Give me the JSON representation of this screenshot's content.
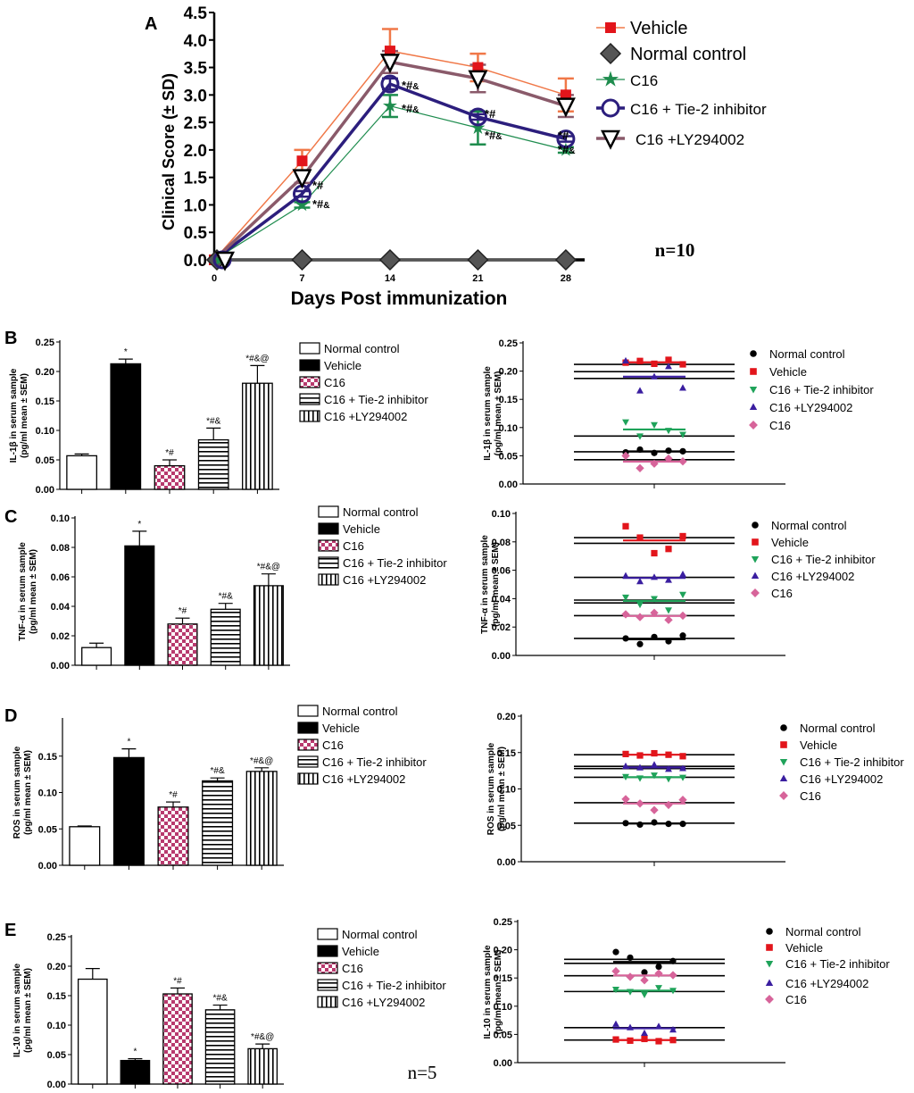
{
  "colors": {
    "vehicle": "#e2151b",
    "normal_control": "#000000",
    "normal_control_line": "#555555",
    "c16": "#1e8c4e",
    "c16_tie2": "#2c1e7d",
    "c16_ly": "#8a5a6a",
    "vehicle_line": "#f07848",
    "checker": "#b83a6e",
    "scatter_tie2": "#1fa35a",
    "scatter_ly": "#3a1ea0",
    "scatter_c16": "#d7649a"
  },
  "panel_letters": [
    "A",
    "B",
    "C",
    "D",
    "E"
  ],
  "footnote_n5": "n=5",
  "chart_data": [
    {
      "id": "A",
      "type": "line",
      "ylabel": "Clinical Score (± SD)",
      "xlabel": "Days Post immunization",
      "x": [
        0,
        7,
        14,
        21,
        28
      ],
      "xlim": [
        0,
        29.5
      ],
      "ylim": [
        0,
        4.5
      ],
      "yticks": [
        0.0,
        0.5,
        1.0,
        1.5,
        2.0,
        2.5,
        3.0,
        3.5,
        4.0,
        4.5
      ],
      "series": [
        {
          "name": "Vehicle",
          "marker": "square",
          "values": [
            0,
            1.8,
            3.8,
            3.5,
            3.0
          ],
          "errors": [
            0,
            0.2,
            0.4,
            0.25,
            0.3
          ]
        },
        {
          "name": "Normal control",
          "marker": "diamond",
          "values": [
            0,
            0,
            0,
            0,
            0
          ],
          "errors": [
            0,
            0,
            0,
            0,
            0
          ]
        },
        {
          "name": "C16",
          "marker": "star",
          "values": [
            0,
            1.0,
            2.8,
            2.4,
            2.0
          ],
          "errors": [
            0,
            0.05,
            0.2,
            0.3,
            0.05
          ]
        },
        {
          "name": "C16 + Tie-2 inhibitor",
          "marker": "circle",
          "values": [
            0,
            1.2,
            3.2,
            2.6,
            2.2
          ],
          "errors": [
            0,
            0.05,
            0.1,
            0.05,
            0.05
          ]
        },
        {
          "name": "C16 +LY294002",
          "marker": "triangle-down",
          "values": [
            0,
            1.5,
            3.6,
            3.3,
            2.8
          ],
          "errors": [
            0,
            0.1,
            0.2,
            0.25,
            0.2
          ]
        }
      ],
      "annotations": [
        "*#",
        "*#&",
        "*#&",
        "*#&",
        "*#",
        "*#&",
        "*#",
        "*#&"
      ],
      "note": "n=10"
    },
    {
      "id": "B-bar",
      "type": "bar",
      "ylabel": "IL-1β  in serum sample",
      "ylabel2": "(pg/ml mean ± SEM)",
      "ylim": [
        0,
        0.25
      ],
      "yticks": [
        0.0,
        0.05,
        0.1,
        0.15,
        0.2,
        0.25
      ],
      "categories": [
        "Normal control",
        "Vehicle",
        "C16",
        "C16 + Tie-2 inhibitor",
        "C16 +LY294002"
      ],
      "values": [
        0.057,
        0.213,
        0.04,
        0.084,
        0.18
      ],
      "errors": [
        0.003,
        0.008,
        0.01,
        0.02,
        0.03
      ],
      "labels": [
        "",
        "*",
        "*#",
        "*#&",
        "*#&@"
      ]
    },
    {
      "id": "B-scatter",
      "type": "scatter",
      "ylabel": "IL-1β  in serum sample",
      "ylabel2": "(pg/ml mean ± SEM)",
      "ylim": [
        0,
        0.25
      ],
      "yticks": [
        0.0,
        0.05,
        0.1,
        0.15,
        0.2,
        0.25
      ],
      "series": [
        {
          "name": "Normal control",
          "marker": "circle",
          "values": [
            0.056,
            0.061,
            0.055,
            0.059,
            0.058
          ]
        },
        {
          "name": "Vehicle",
          "marker": "square",
          "values": [
            0.215,
            0.218,
            0.213,
            0.22,
            0.212
          ]
        },
        {
          "name": "C16 + Tie-2 inhibitor",
          "marker": "triangle-down",
          "values": [
            0.11,
            0.085,
            0.105,
            0.095,
            0.088
          ]
        },
        {
          "name": "C16 +LY294002",
          "marker": "triangle-up",
          "values": [
            0.218,
            0.165,
            0.19,
            0.208,
            0.17
          ]
        },
        {
          "name": "C16",
          "marker": "diamond",
          "values": [
            0.05,
            0.028,
            0.036,
            0.045,
            0.04
          ]
        }
      ],
      "lines": [
        0.212,
        0.199,
        0.187,
        0.085,
        0.057,
        0.043
      ]
    },
    {
      "id": "C-bar",
      "type": "bar",
      "ylabel": "TNF-α  in serum sample",
      "ylabel2": "(pg/ml mean ± SEM)",
      "ylim": [
        0,
        0.1
      ],
      "yticks": [
        0.0,
        0.02,
        0.04,
        0.06,
        0.08,
        0.1
      ],
      "categories": [
        "Normal control",
        "Vehicle",
        "C16",
        "C16 + Tie-2 inhibitor",
        "C16 +LY294002"
      ],
      "values": [
        0.012,
        0.081,
        0.028,
        0.038,
        0.054
      ],
      "errors": [
        0.003,
        0.01,
        0.004,
        0.004,
        0.008
      ],
      "labels": [
        "",
        "*",
        "*#",
        "*#&",
        "*#&@"
      ]
    },
    {
      "id": "C-scatter",
      "type": "scatter",
      "ylabel": "TNF-α  in serum sample",
      "ylabel2": "(pg/ml mean ± SEM)",
      "ylim": [
        0,
        0.1
      ],
      "yticks": [
        0.0,
        0.02,
        0.04,
        0.06,
        0.08,
        0.1
      ],
      "series": [
        {
          "name": "Normal control",
          "marker": "circle",
          "values": [
            0.012,
            0.008,
            0.013,
            0.01,
            0.014
          ]
        },
        {
          "name": "Vehicle",
          "marker": "square",
          "values": [
            0.091,
            0.083,
            0.072,
            0.075,
            0.084
          ]
        },
        {
          "name": "C16 + Tie-2 inhibitor",
          "marker": "triangle-down",
          "values": [
            0.041,
            0.036,
            0.04,
            0.032,
            0.043
          ]
        },
        {
          "name": "C16 +LY294002",
          "marker": "triangle-up",
          "values": [
            0.056,
            0.052,
            0.055,
            0.053,
            0.057
          ]
        },
        {
          "name": "C16",
          "marker": "diamond",
          "values": [
            0.029,
            0.027,
            0.03,
            0.025,
            0.028
          ]
        }
      ],
      "lines": [
        0.083,
        0.079,
        0.055,
        0.039,
        0.037,
        0.028,
        0.012
      ]
    },
    {
      "id": "D-bar",
      "type": "bar",
      "ylabel": "ROS  in serum sample",
      "ylabel2": "(pg/ml mean ± SEM)",
      "ylim": [
        0,
        0.2
      ],
      "yticks": [
        0.0,
        0.05,
        0.1,
        0.15
      ],
      "categories": [
        "Normal control",
        "Vehicle",
        "C16",
        "C16 + Tie-2 inhibitor",
        "C16 +LY294002"
      ],
      "values": [
        0.053,
        0.148,
        0.08,
        0.116,
        0.129
      ],
      "errors": [
        0.001,
        0.012,
        0.007,
        0.004,
        0.005
      ],
      "labels": [
        "",
        "*",
        "*#",
        "*#&",
        "*#&@"
      ]
    },
    {
      "id": "D-scatter",
      "type": "scatter",
      "ylabel": "ROS  in serum sample",
      "ylabel2": "(pg/ml  mean ± SEM)",
      "ylim": [
        0,
        0.2
      ],
      "yticks": [
        0.0,
        0.05,
        0.1,
        0.15,
        0.2
      ],
      "series": [
        {
          "name": "Normal control",
          "marker": "circle",
          "values": [
            0.053,
            0.051,
            0.054,
            0.052,
            0.052
          ]
        },
        {
          "name": "Vehicle",
          "marker": "square",
          "values": [
            0.148,
            0.146,
            0.149,
            0.147,
            0.145
          ]
        },
        {
          "name": "C16 + Tie-2 inhibitor",
          "marker": "triangle-down",
          "values": [
            0.117,
            0.115,
            0.119,
            0.114,
            0.116
          ]
        },
        {
          "name": "C16 +LY294002",
          "marker": "triangle-up",
          "values": [
            0.131,
            0.129,
            0.133,
            0.127,
            0.128
          ]
        },
        {
          "name": "C16",
          "marker": "diamond",
          "values": [
            0.086,
            0.08,
            0.071,
            0.078,
            0.085
          ]
        }
      ],
      "lines": [
        0.147,
        0.131,
        0.128,
        0.116,
        0.081,
        0.053
      ]
    },
    {
      "id": "E-bar",
      "type": "bar",
      "ylabel": "IL-10  in serum sample",
      "ylabel2": "(pg/ml mean ± SEM)",
      "ylim": [
        0,
        0.25
      ],
      "yticks": [
        0.0,
        0.05,
        0.1,
        0.15,
        0.2,
        0.25
      ],
      "categories": [
        "Normal control",
        "Vehicle",
        "C16",
        "C16 + Tie-2 inhibitor",
        "C16 +LY294002"
      ],
      "values": [
        0.178,
        0.04,
        0.153,
        0.126,
        0.06
      ],
      "errors": [
        0.018,
        0.003,
        0.01,
        0.008,
        0.008
      ],
      "labels": [
        "",
        "*",
        "*#",
        "*#&",
        "*#&@"
      ]
    },
    {
      "id": "E-scatter",
      "type": "scatter",
      "ylabel": "IL-10  in serum sample",
      "ylabel2": "(pg/ml mean ± SEM)",
      "ylim": [
        0,
        0.25
      ],
      "yticks": [
        0.0,
        0.05,
        0.1,
        0.15,
        0.2,
        0.25
      ],
      "series": [
        {
          "name": "Normal control",
          "marker": "circle",
          "values": [
            0.196,
            0.186,
            0.16,
            0.17,
            0.18
          ]
        },
        {
          "name": "Vehicle",
          "marker": "square",
          "values": [
            0.041,
            0.039,
            0.042,
            0.038,
            0.04
          ]
        },
        {
          "name": "C16 + Tie-2 inhibitor",
          "marker": "triangle-down",
          "values": [
            0.13,
            0.126,
            0.121,
            0.133,
            0.128
          ]
        },
        {
          "name": "C16 +LY294002",
          "marker": "triangle-up",
          "values": [
            0.068,
            0.062,
            0.052,
            0.064,
            0.058
          ]
        },
        {
          "name": "C16",
          "marker": "diamond",
          "values": [
            0.162,
            0.152,
            0.146,
            0.158,
            0.155
          ]
        }
      ],
      "lines": [
        0.183,
        0.176,
        0.154,
        0.126,
        0.062,
        0.04
      ]
    }
  ]
}
